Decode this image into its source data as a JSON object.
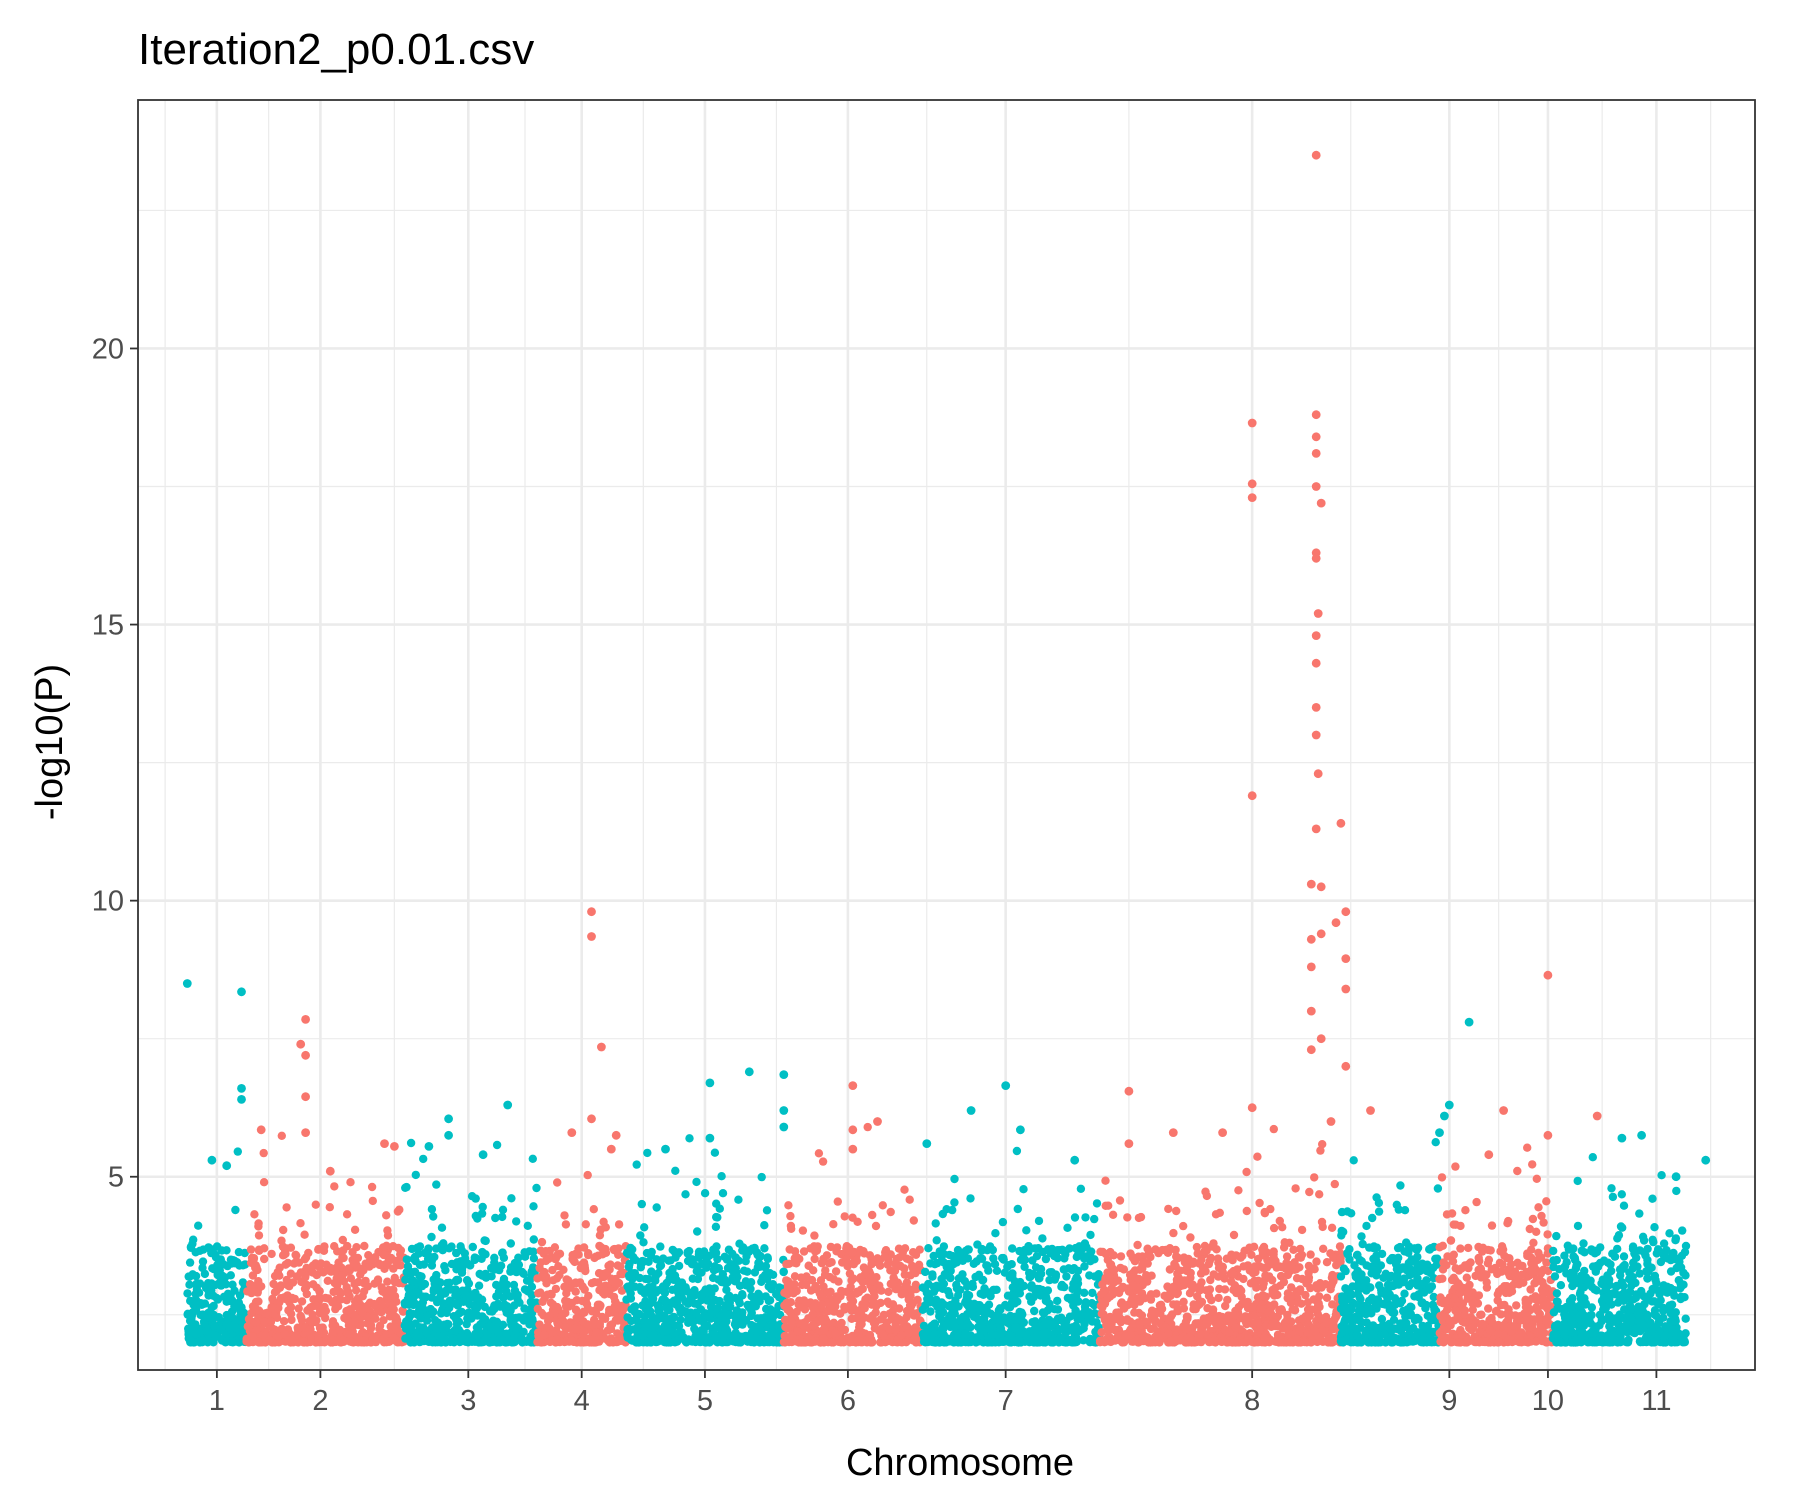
{
  "chart_data": {
    "type": "scatter",
    "title": "Iteration2_p0.01.csv",
    "xlabel": "Chromosome",
    "ylabel": "-log10(P)",
    "ylim": [
      1.5,
      24.5
    ],
    "y_ticks": [
      5,
      10,
      15,
      20
    ],
    "x_range": [
      0,
      16.4
    ],
    "grid": true,
    "legend": "none",
    "colors": [
      "#00BFC4",
      "#F8766D"
    ],
    "chromosomes": [
      {
        "label": "1",
        "start": 0.5,
        "end": 1.1,
        "tick": 0.8,
        "color_index": 0,
        "peaks": [
          [
            0.5,
            8.5
          ],
          [
            1.05,
            8.35
          ],
          [
            1.05,
            6.6
          ],
          [
            1.05,
            6.4
          ],
          [
            0.75,
            5.3
          ],
          [
            0.9,
            5.2
          ]
        ]
      },
      {
        "label": "2",
        "start": 1.1,
        "end": 2.7,
        "tick": 1.85,
        "color_index": 1,
        "peaks": [
          [
            1.7,
            7.85
          ],
          [
            1.65,
            7.4
          ],
          [
            1.7,
            7.2
          ],
          [
            1.7,
            6.45
          ],
          [
            1.7,
            5.8
          ],
          [
            1.25,
            5.85
          ],
          [
            2.5,
            5.6
          ],
          [
            2.6,
            5.55
          ],
          [
            1.95,
            5.1
          ]
        ]
      },
      {
        "label": "3",
        "start": 2.7,
        "end": 4.05,
        "tick": 3.35,
        "color_index": 0,
        "peaks": [
          [
            3.75,
            6.3
          ],
          [
            3.15,
            6.05
          ],
          [
            2.95,
            5.55
          ],
          [
            3.15,
            5.75
          ],
          [
            3.5,
            5.4
          ]
        ]
      },
      {
        "label": "4",
        "start": 4.05,
        "end": 4.95,
        "tick": 4.5,
        "color_index": 1,
        "peaks": [
          [
            4.6,
            9.8
          ],
          [
            4.6,
            9.35
          ],
          [
            4.7,
            7.35
          ],
          [
            4.6,
            6.05
          ],
          [
            4.85,
            5.75
          ],
          [
            4.4,
            5.8
          ],
          [
            4.8,
            5.5
          ]
        ]
      },
      {
        "label": "5",
        "start": 4.95,
        "end": 6.55,
        "tick": 5.75,
        "color_index": 0,
        "peaks": [
          [
            6.2,
            6.9
          ],
          [
            6.55,
            6.85
          ],
          [
            5.8,
            6.7
          ],
          [
            6.55,
            6.2
          ],
          [
            5.8,
            5.7
          ],
          [
            5.35,
            5.5
          ],
          [
            6.55,
            5.9
          ]
        ]
      },
      {
        "label": "6",
        "start": 6.55,
        "end": 7.95,
        "tick": 7.2,
        "color_index": 1,
        "peaks": [
          [
            7.25,
            6.65
          ],
          [
            7.5,
            6.0
          ],
          [
            7.25,
            5.85
          ],
          [
            7.25,
            5.5
          ]
        ]
      },
      {
        "label": "7",
        "start": 7.95,
        "end": 9.75,
        "tick": 8.8,
        "color_index": 0,
        "peaks": [
          [
            8.8,
            6.65
          ],
          [
            8.45,
            6.2
          ],
          [
            8.95,
            5.85
          ],
          [
            8.0,
            5.6
          ],
          [
            9.5,
            5.3
          ]
        ]
      },
      {
        "label": "8",
        "start": 9.75,
        "end": 12.2,
        "tick": 11.3,
        "color_index": 1,
        "peaks": [
          [
            11.3,
            18.65
          ],
          [
            11.3,
            17.55
          ],
          [
            11.3,
            17.3
          ],
          [
            11.3,
            11.9
          ],
          [
            11.3,
            6.25
          ],
          [
            11.95,
            23.5
          ],
          [
            11.95,
            18.8
          ],
          [
            11.95,
            18.4
          ],
          [
            11.95,
            18.1
          ],
          [
            11.95,
            17.5
          ],
          [
            12.0,
            17.2
          ],
          [
            11.95,
            16.3
          ],
          [
            11.95,
            16.2
          ],
          [
            11.97,
            15.2
          ],
          [
            11.95,
            14.8
          ],
          [
            11.95,
            14.3
          ],
          [
            11.95,
            13.5
          ],
          [
            11.95,
            13.0
          ],
          [
            11.97,
            12.3
          ],
          [
            11.95,
            11.3
          ],
          [
            12.2,
            11.4
          ],
          [
            11.9,
            10.3
          ],
          [
            12.0,
            10.25
          ],
          [
            12.25,
            9.8
          ],
          [
            11.9,
            9.3
          ],
          [
            12.0,
            9.4
          ],
          [
            12.15,
            9.6
          ],
          [
            11.9,
            8.8
          ],
          [
            12.25,
            8.95
          ],
          [
            12.25,
            8.4
          ],
          [
            11.9,
            8.0
          ],
          [
            11.9,
            7.3
          ],
          [
            12.0,
            7.5
          ],
          [
            12.25,
            7.0
          ],
          [
            10.05,
            6.55
          ],
          [
            10.05,
            5.6
          ],
          [
            10.5,
            5.8
          ],
          [
            11.0,
            5.8
          ],
          [
            12.1,
            6.0
          ],
          [
            12.5,
            6.2
          ]
        ]
      },
      {
        "label": "9",
        "start": 12.2,
        "end": 13.2,
        "tick": 13.3,
        "color_index": 0,
        "peaks": [
          [
            13.5,
            7.8
          ],
          [
            13.3,
            6.3
          ],
          [
            13.25,
            6.1
          ],
          [
            13.2,
            5.8
          ]
        ]
      },
      {
        "label": "10",
        "start": 13.2,
        "end": 14.35,
        "tick": 14.3,
        "color_index": 1,
        "peaks": [
          [
            14.3,
            8.65
          ],
          [
            13.85,
            6.2
          ],
          [
            14.8,
            6.1
          ],
          [
            14.3,
            5.75
          ],
          [
            13.7,
            5.4
          ]
        ]
      },
      {
        "label": "11",
        "start": 14.35,
        "end": 15.7,
        "tick": 15.4,
        "color_index": 0,
        "peaks": [
          [
            15.25,
            5.75
          ],
          [
            15.05,
            5.7
          ],
          [
            15.9,
            5.3
          ],
          [
            15.6,
            5.0
          ]
        ]
      }
    ]
  }
}
